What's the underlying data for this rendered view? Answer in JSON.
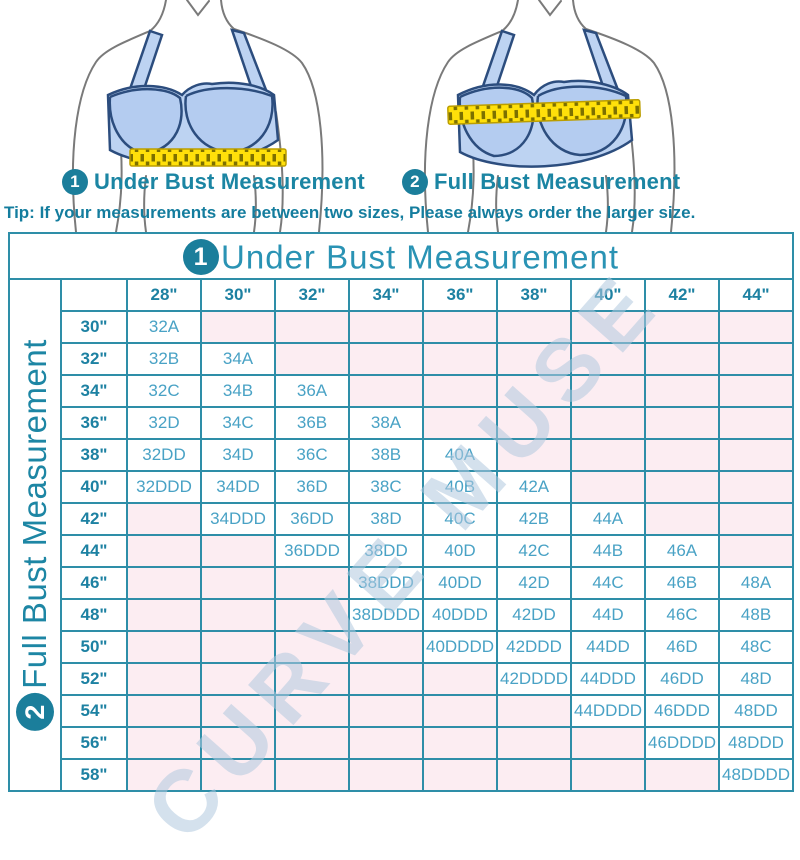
{
  "figures": [
    {
      "number": "1",
      "label": "Under Bust Measurement"
    },
    {
      "number": "2",
      "label": "Full Bust Measurement"
    }
  ],
  "tip": "Tip: If your measurements are between two sizes, Please always order the larger size.",
  "watermark": "CURVE MUSE",
  "colors": {
    "teal_badge": "#1b7e9b",
    "table_border": "#2e8ea8",
    "cell_text": "#49a2c5",
    "empty_cell_pink": "#fcedf2",
    "tape_yellow": "#ffe00a",
    "bra_blue": "#bdd3f2"
  },
  "chart_data": {
    "type": "table",
    "title": "Under Bust Measurement",
    "title_number": "1",
    "row_axis_label": "Full Bust Measurement",
    "row_axis_number": "2",
    "columns": [
      "28\"",
      "30\"",
      "32\"",
      "34\"",
      "36\"",
      "38\"",
      "40\"",
      "42\"",
      "44\""
    ],
    "rows": [
      {
        "label": "30\"",
        "cells": [
          "32A",
          "",
          "",
          "",
          "",
          "",
          "",
          "",
          ""
        ]
      },
      {
        "label": "32\"",
        "cells": [
          "32B",
          "34A",
          "",
          "",
          "",
          "",
          "",
          "",
          ""
        ]
      },
      {
        "label": "34\"",
        "cells": [
          "32C",
          "34B",
          "36A",
          "",
          "",
          "",
          "",
          "",
          ""
        ]
      },
      {
        "label": "36\"",
        "cells": [
          "32D",
          "34C",
          "36B",
          "38A",
          "",
          "",
          "",
          "",
          ""
        ]
      },
      {
        "label": "38\"",
        "cells": [
          "32DD",
          "34D",
          "36C",
          "38B",
          "40A",
          "",
          "",
          "",
          ""
        ]
      },
      {
        "label": "40\"",
        "cells": [
          "32DDD",
          "34DD",
          "36D",
          "38C",
          "40B",
          "42A",
          "",
          "",
          ""
        ]
      },
      {
        "label": "42\"",
        "cells": [
          "",
          "34DDD",
          "36DD",
          "38D",
          "40C",
          "42B",
          "44A",
          "",
          ""
        ]
      },
      {
        "label": "44\"",
        "cells": [
          "",
          "",
          "36DDD",
          "38DD",
          "40D",
          "42C",
          "44B",
          "46A",
          ""
        ]
      },
      {
        "label": "46\"",
        "cells": [
          "",
          "",
          "",
          "38DDD",
          "40DD",
          "42D",
          "44C",
          "46B",
          "48A"
        ]
      },
      {
        "label": "48\"",
        "cells": [
          "",
          "",
          "",
          "38DDDD",
          "40DDD",
          "42DD",
          "44D",
          "46C",
          "48B"
        ]
      },
      {
        "label": "50\"",
        "cells": [
          "",
          "",
          "",
          "",
          "40DDDD",
          "42DDD",
          "44DD",
          "46D",
          "48C"
        ]
      },
      {
        "label": "52\"",
        "cells": [
          "",
          "",
          "",
          "",
          "",
          "42DDDD",
          "44DDD",
          "46DD",
          "48D"
        ]
      },
      {
        "label": "54\"",
        "cells": [
          "",
          "",
          "",
          "",
          "",
          "",
          "44DDDD",
          "46DDD",
          "48DD"
        ]
      },
      {
        "label": "56\"",
        "cells": [
          "",
          "",
          "",
          "",
          "",
          "",
          "",
          "46DDDD",
          "48DDD"
        ]
      },
      {
        "label": "58\"",
        "cells": [
          "",
          "",
          "",
          "",
          "",
          "",
          "",
          "",
          "48DDDD"
        ]
      }
    ]
  }
}
